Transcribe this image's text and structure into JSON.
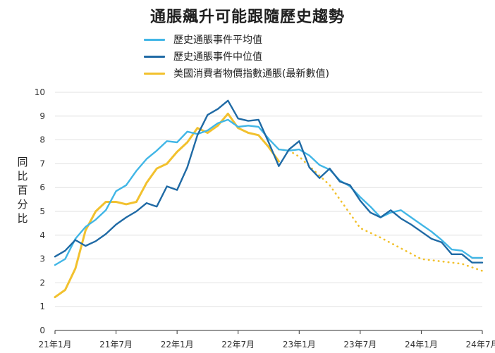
{
  "chart_data": {
    "type": "line",
    "title": "通脹飆升可能跟隨歷史趨勢",
    "ylabel": "同比百分比",
    "xlabel": "",
    "ylim": [
      0,
      10
    ],
    "yticks": [
      "0",
      "1",
      "2",
      "3",
      "4",
      "5",
      "6",
      "7",
      "8",
      "9",
      "10"
    ],
    "xticks": [
      "21年1月",
      "21年7月",
      "22年1月",
      "22年7月",
      "23年1月",
      "23年7月",
      "24年1月",
      "24年7月"
    ],
    "x_unit": "months since 21年1月",
    "grid": "horizontal",
    "legend_position": "top-center",
    "series": [
      {
        "name": "歷史通脹事件平均值",
        "color": "#41b6e6",
        "style": "solid",
        "x": [
          0,
          1,
          2,
          3,
          4,
          5,
          6,
          7,
          8,
          9,
          10,
          11,
          12,
          13,
          14,
          15,
          16,
          17,
          18,
          19,
          20,
          21,
          22,
          23,
          24,
          25,
          26,
          27,
          28,
          29,
          30,
          31,
          32,
          33,
          34,
          35,
          36,
          37,
          38,
          39,
          40,
          41,
          42
        ],
        "values": [
          2.75,
          3.0,
          3.85,
          4.35,
          4.65,
          5.05,
          5.85,
          6.1,
          6.7,
          7.2,
          7.55,
          7.95,
          7.9,
          8.35,
          8.25,
          8.4,
          8.7,
          8.85,
          8.55,
          8.6,
          8.55,
          8.05,
          7.6,
          7.55,
          7.6,
          7.35,
          6.95,
          6.75,
          6.3,
          6.05,
          5.6,
          5.2,
          4.75,
          4.95,
          5.05,
          4.75,
          4.45,
          4.15,
          3.8,
          3.4,
          3.35,
          3.05,
          3.05
        ]
      },
      {
        "name": "歷史通脹事件中位值",
        "color": "#1f6aa5",
        "style": "solid",
        "x": [
          0,
          1,
          2,
          3,
          4,
          5,
          6,
          7,
          8,
          9,
          10,
          11,
          12,
          13,
          14,
          15,
          16,
          17,
          18,
          19,
          20,
          21,
          22,
          23,
          24,
          25,
          26,
          27,
          28,
          29,
          30,
          31,
          32,
          33,
          34,
          35,
          36,
          37,
          38,
          39,
          40,
          41,
          42
        ],
        "values": [
          3.1,
          3.35,
          3.8,
          3.55,
          3.75,
          4.05,
          4.45,
          4.75,
          5.0,
          5.35,
          5.2,
          6.05,
          5.9,
          6.85,
          8.2,
          9.05,
          9.3,
          9.65,
          8.9,
          8.8,
          8.85,
          7.9,
          6.9,
          7.6,
          7.95,
          6.85,
          6.4,
          6.8,
          6.25,
          6.1,
          5.45,
          4.95,
          4.75,
          5.05,
          4.7,
          4.45,
          4.15,
          3.85,
          3.7,
          3.2,
          3.2,
          2.85,
          2.85
        ]
      },
      {
        "name": "美國消費者物價指數通脹(最新數值)",
        "color": "#f2c12e",
        "style": "solid",
        "x": [
          0,
          1,
          2,
          3,
          4,
          5,
          6,
          7,
          8,
          9,
          10,
          11,
          12,
          13,
          14,
          15,
          16,
          17,
          18,
          19,
          20,
          21,
          22
        ],
        "values": [
          1.4,
          1.7,
          2.6,
          4.2,
          5.0,
          5.4,
          5.4,
          5.3,
          5.4,
          6.2,
          6.8,
          7.0,
          7.5,
          7.9,
          8.5,
          8.3,
          8.6,
          9.1,
          8.5,
          8.3,
          8.2,
          7.7,
          7.1
        ]
      },
      {
        "name": "美國消費者物價指數通脹(最新數值)",
        "color": "#f2c12e",
        "style": "dotted",
        "x": [
          22,
          23,
          24,
          27,
          30,
          32,
          36,
          40,
          42
        ],
        "values": [
          7.6,
          7.55,
          7.3,
          6.1,
          4.3,
          3.9,
          3.0,
          2.8,
          2.5
        ]
      }
    ]
  },
  "legend": [
    {
      "label": "歷史通脹事件平均值",
      "color": "#41b6e6"
    },
    {
      "label": "歷史通脹事件中位值",
      "color": "#1f6aa5"
    },
    {
      "label": "美國消費者物價指數通脹(最新數值)",
      "color": "#f2c12e"
    }
  ],
  "colors": {
    "grid": "#d9d9d9",
    "axis": "#333333"
  }
}
